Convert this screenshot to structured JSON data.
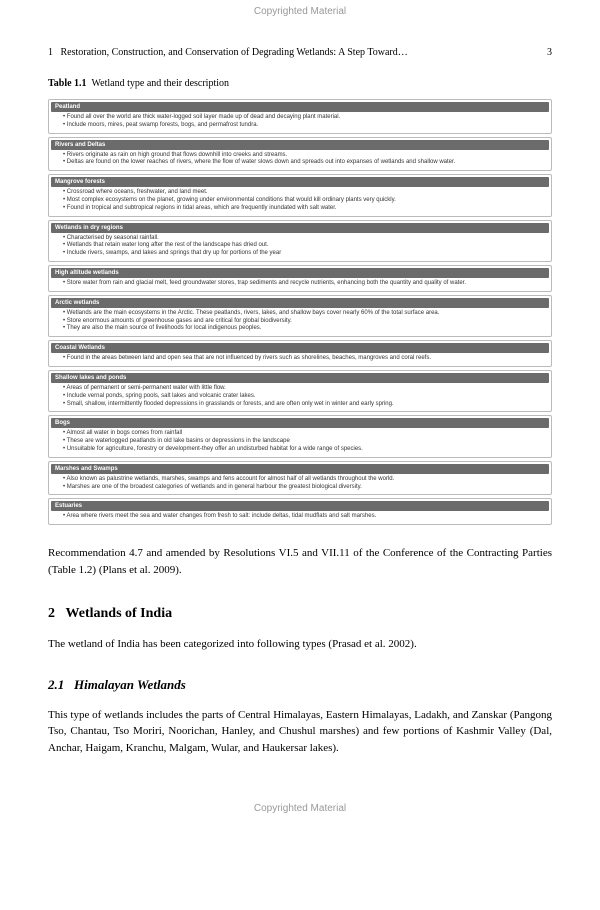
{
  "copyright": "Copyrighted Material",
  "header": {
    "chapter_num": "1",
    "chapter_title": "Restoration, Construction, and Conservation of Degrading Wetlands: A Step Toward…",
    "page_num": "3"
  },
  "table": {
    "label": "Table 1.1",
    "title": "Wetland type and their description",
    "groups": [
      {
        "name": "Peatland",
        "bullets": [
          "Found all over the world are thick water-logged soil layer made up of dead and decaying plant material.",
          "Include moors, mires, peat swamp forests, bogs, and permafrost tundra."
        ]
      },
      {
        "name": "Rivers and Deltas",
        "bullets": [
          "Rivers originate as rain on high ground that flows downhill into creeks and streams.",
          "Deltas are found on the lower reaches of rivers, where the flow of water slows down and spreads out into expanses of wetlands and shallow water."
        ]
      },
      {
        "name": "Mangrove forests",
        "bullets": [
          "Crossroad where oceans, freshwater, and land meet.",
          "Most complex ecosystems on the planet, growing under environmental conditions that would kill ordinary plants very quickly.",
          "Found in tropical and subtropical regions in tidal areas, which are frequently inundated with salt water."
        ]
      },
      {
        "name": "Wetlands in dry regions",
        "bullets": [
          "Characterised by seasonal rainfall.",
          "Wetlands that retain water long after the rest of the landscape has dried out.",
          "Include rivers, swamps, and lakes and springs that dry up for portions of the year"
        ]
      },
      {
        "name": "High altitude wetlands",
        "bullets": [
          "Store water from rain and glacial melt, feed groundwater stores, trap sediments and recycle nutrients, enhancing both the quantity and quality of water."
        ]
      },
      {
        "name": "Arctic wetlands",
        "bullets": [
          "Wetlands are the main ecosystems in the Arctic. These peatlands, rivers, lakes, and shallow bays cover nearly 60% of the total surface area.",
          "Store enormous amounts of greenhouse gases and are critical for global biodiversity.",
          "They are also the main source of livelihoods for local indigenous peoples."
        ]
      },
      {
        "name": "Coastal Wetlands",
        "bullets": [
          "Found in the areas between land and open sea that are not influenced by rivers such as shorelines, beaches, mangroves and coral reefs."
        ]
      },
      {
        "name": "Shallow lakes and ponds",
        "bullets": [
          "Areas of permanent or semi-permanent water with little flow.",
          "Include vernal ponds, spring pools, salt lakes and volcanic crater lakes.",
          "Small, shallow, intermittently flooded depressions in grasslands or forests, and are often only wet in winter and early spring."
        ]
      },
      {
        "name": "Bogs",
        "bullets": [
          "Almost all water in bogs comes from rainfall",
          "These are waterlogged peatlands in old lake basins or depressions in the landscape",
          "Unsuitable for agriculture, forestry or development-they offer an undisturbed habitat for a wide range of species."
        ]
      },
      {
        "name": "Marshes and Swamps",
        "bullets": [
          "Also known as palustrine wetlands, marshes, swamps and fens account for almost half of all wetlands throughout the world.",
          "Marshes are one of the broadest categories of wetlands and in general harbour the greatest biological diversity."
        ]
      },
      {
        "name": "Estuaries",
        "bullets": [
          "Area where rivers meet the sea and water changes from fresh to salt: include deltas, tidal mudflats and salt marshes."
        ]
      }
    ]
  },
  "paragraphs": {
    "intro_after_table": "Recommendation 4.7 and amended by Resolutions VI.5 and VII.11 of the Conference of the Contracting Parties (Table 1.2) (Plans et al. 2009).",
    "section2_num": "2",
    "section2_title": "Wetlands of India",
    "section2_body": "The wetland of India has been categorized into following types (Prasad et al. 2002).",
    "section21_num": "2.1",
    "section21_title": "Himalayan Wetlands",
    "section21_body": "This type of wetlands includes the parts of Central Himalayas, Eastern Himalayas, Ladakh, and Zanskar (Pangong Tso, Chantau, Tso Moriri, Noorichan, Hanley, and Chushul marshes) and few portions of Kashmir Valley (Dal, Anchar, Haigam, Kranchu, Malgam, Wular, and Haukersar lakes)."
  }
}
